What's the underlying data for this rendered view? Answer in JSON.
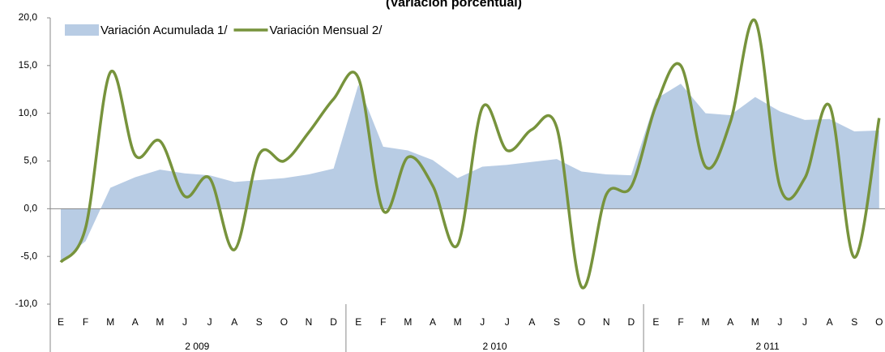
{
  "chart_data": {
    "type": "line",
    "title": "(Variación porcentual)",
    "categories": [
      "E",
      "F",
      "M",
      "A",
      "M",
      "J",
      "J",
      "A",
      "S",
      "O",
      "N",
      "D",
      "E",
      "F",
      "M",
      "A",
      "M",
      "J",
      "J",
      "A",
      "S",
      "O",
      "N",
      "D",
      "E",
      "F",
      "M",
      "A",
      "M",
      "J",
      "J",
      "A",
      "S",
      "O"
    ],
    "year_groups": [
      {
        "label": "2 009",
        "count": 12
      },
      {
        "label": "2 010",
        "count": 12
      },
      {
        "label": "2 011",
        "count": 10
      }
    ],
    "series": [
      {
        "name": "Variación Acumulada 1/",
        "kind": "area",
        "color": "#b8cce4",
        "values": [
          -5.5,
          -3.4,
          2.2,
          3.3,
          4.1,
          3.7,
          3.5,
          2.8,
          3.0,
          3.2,
          3.6,
          4.2,
          13.0,
          6.5,
          6.1,
          5.1,
          3.2,
          4.4,
          4.6,
          4.9,
          5.2,
          3.9,
          3.6,
          3.5,
          11.5,
          13.1,
          10.0,
          9.8,
          11.7,
          10.2,
          9.3,
          9.4,
          8.1,
          8.2
        ]
      },
      {
        "name": "Variación Mensual 2/",
        "kind": "line",
        "color": "#77933c",
        "values": [
          -5.6,
          -2.0,
          14.3,
          5.6,
          7.1,
          1.3,
          3.2,
          -4.3,
          5.7,
          5.0,
          8.0,
          11.5,
          13.7,
          -0.2,
          5.4,
          2.4,
          -3.8,
          10.6,
          6.1,
          8.3,
          8.5,
          -8.2,
          1.5,
          2.3,
          10.8,
          15.0,
          4.4,
          9.1,
          19.7,
          2.3,
          3.2,
          10.8,
          -5.1,
          9.5
        ]
      }
    ],
    "ylim": [
      -10,
      20
    ],
    "yticks": [
      {
        "value": -10,
        "label": "-10,0"
      },
      {
        "value": -5,
        "label": "-5,0"
      },
      {
        "value": 0,
        "label": "0,0"
      },
      {
        "value": 5,
        "label": "5,0"
      },
      {
        "value": 10,
        "label": "10,0"
      },
      {
        "value": 15,
        "label": "15,0"
      },
      {
        "value": 20,
        "label": "20,0"
      }
    ],
    "grid": false,
    "legend": "top-left"
  }
}
